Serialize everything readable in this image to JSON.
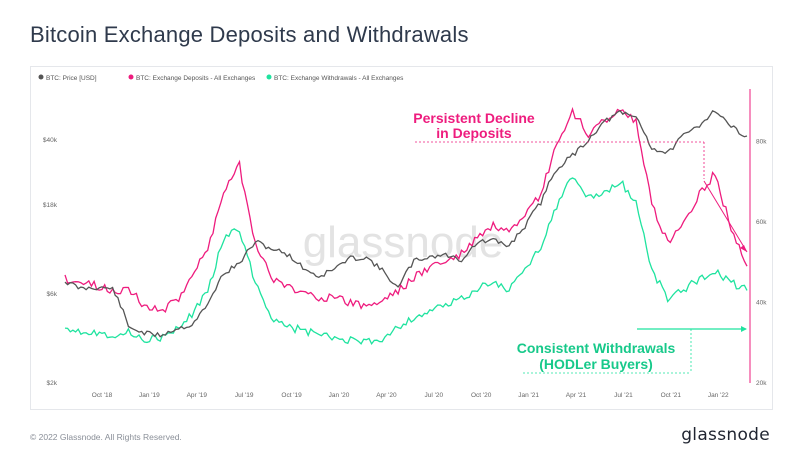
{
  "title": "Bitcoin Exchange Deposits and Withdrawals",
  "footer": {
    "copyright": "© 2022 Glassnode. All Rights Reserved.",
    "brand": "glassnode"
  },
  "watermark": "glassnode",
  "colors": {
    "price": "#555555",
    "deposits": "#ee1c7e",
    "withdrawals": "#1fe39f",
    "title": "#2f3a4c"
  },
  "chart_data": {
    "type": "line",
    "legend_position": "top-left",
    "grid": false,
    "x_ticks": [
      "Oct '18",
      "Jan '19",
      "Apr '19",
      "Jul '19",
      "Oct '19",
      "Jan '20",
      "Apr '20",
      "Jul '20",
      "Oct '20",
      "Jan '21",
      "Apr '21",
      "Jul '21",
      "Oct '21",
      "Jan '22"
    ],
    "x_range": [
      "Aug '18",
      "Mar '22"
    ],
    "y_left": {
      "scale": "log",
      "ticks": [
        "$2k",
        "$6k",
        "$18k",
        "$40k"
      ]
    },
    "y_right": {
      "scale": "linear",
      "ticks": [
        "20k",
        "40k",
        "60k",
        "80k"
      ],
      "range": [
        20000,
        93000
      ]
    },
    "series": [
      {
        "name": "BTC: Price [USD]",
        "axis": "left",
        "x": [
          0,
          1,
          2,
          3,
          4,
          5,
          6,
          7,
          8,
          9,
          10,
          11,
          12,
          13,
          14,
          15,
          16,
          17,
          18,
          19,
          20,
          21,
          22,
          23,
          24,
          25,
          26,
          27,
          28,
          29,
          30,
          31,
          32,
          33,
          34,
          35,
          36,
          37,
          38,
          39,
          40,
          41,
          42,
          43
        ],
        "values": [
          7000,
          6400,
          6500,
          6400,
          4000,
          3700,
          3600,
          3900,
          4100,
          5200,
          7700,
          8700,
          11400,
          10500,
          9800,
          8300,
          7400,
          8200,
          9300,
          9400,
          8000,
          6400,
          9000,
          9500,
          9700,
          9100,
          11300,
          11600,
          10800,
          13800,
          18500,
          28000,
          33000,
          40000,
          50000,
          56000,
          53000,
          36000,
          34000,
          42000,
          48000,
          58000,
          47000,
          42000
        ]
      },
      {
        "name": "BTC: Exchange Deposits - All Exchanges",
        "axis": "right",
        "x": [
          0,
          1,
          2,
          3,
          4,
          5,
          6,
          7,
          8,
          9,
          10,
          11,
          12,
          13,
          14,
          15,
          16,
          17,
          18,
          19,
          20,
          21,
          22,
          23,
          24,
          25,
          26,
          27,
          28,
          29,
          30,
          31,
          32,
          33,
          34,
          35,
          36,
          37,
          38,
          39,
          40,
          41,
          42,
          43
        ],
        "values": [
          46000,
          45000,
          44000,
          43000,
          43500,
          39000,
          38000,
          40000,
          47000,
          53000,
          68000,
          74000,
          55000,
          46000,
          44000,
          42500,
          41500,
          41000,
          40000,
          39000,
          40500,
          43000,
          46000,
          49000,
          50000,
          52000,
          56000,
          59000,
          57000,
          61000,
          67000,
          79000,
          87000,
          82000,
          85000,
          88000,
          85000,
          64000,
          55000,
          60000,
          67000,
          72000,
          58000,
          49000
        ]
      },
      {
        "name": "BTC: Exchange Withdrawals - All Exchanges",
        "axis": "right",
        "x": [
          0,
          1,
          2,
          3,
          4,
          5,
          6,
          7,
          8,
          9,
          10,
          11,
          12,
          13,
          14,
          15,
          16,
          17,
          18,
          19,
          20,
          21,
          22,
          23,
          24,
          25,
          26,
          27,
          28,
          29,
          30,
          31,
          32,
          33,
          34,
          35,
          36,
          37,
          38,
          39,
          40,
          41,
          42,
          43
        ],
        "values": [
          34000,
          33000,
          32500,
          32000,
          32500,
          31000,
          31000,
          33000,
          37000,
          43000,
          56000,
          58000,
          45000,
          36500,
          34000,
          33000,
          32000,
          31000,
          30500,
          30000,
          31000,
          34000,
          36000,
          38000,
          39000,
          41000,
          43500,
          45000,
          43000,
          48000,
          54000,
          64000,
          71000,
          66000,
          67000,
          70000,
          65000,
          48000,
          41000,
          43000,
          46000,
          48000,
          45000,
          43000
        ]
      }
    ],
    "annotations": [
      {
        "text": "Persistent Decline\nin Deposits",
        "color": "#ee1c7e"
      },
      {
        "text": "Consistent Withdrawals\n(HODLer Buyers)",
        "color": "#1fe39f"
      }
    ]
  }
}
